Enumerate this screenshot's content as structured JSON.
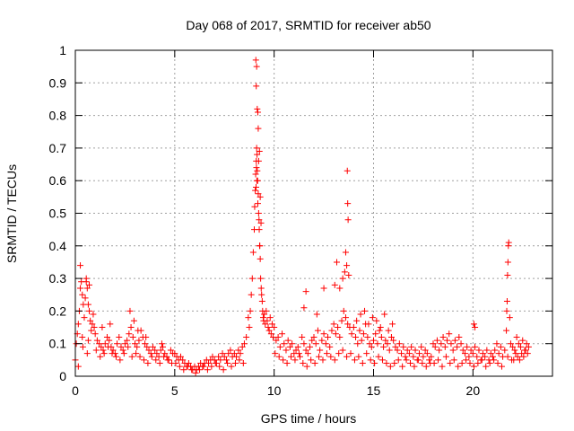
{
  "chart_data": {
    "type": "scatter",
    "title": "Day 068 of 2017, SRMTID for receiver ab50",
    "xlabel": "GPS time / hours",
    "ylabel": "SRMTID / TECUs",
    "xlim": [
      0,
      24
    ],
    "ylim": [
      0,
      1
    ],
    "grid": true,
    "marker": "+",
    "marker_color": "#ff0000",
    "xticks": [
      0,
      5,
      10,
      15,
      20
    ],
    "xtick_labels": [
      "0",
      "5",
      "10",
      "15",
      "20"
    ],
    "yticks": [
      0,
      0.1,
      0.2,
      0.3,
      0.4,
      0.5,
      0.6,
      0.7,
      0.8,
      0.9,
      1
    ],
    "ytick_labels": [
      "0",
      "0.1",
      "0.2",
      "0.3",
      "0.4",
      "0.5",
      "0.6",
      "0.7",
      "0.8",
      "0.9",
      "1"
    ],
    "series": [
      {
        "name": "SRMTID",
        "x": [
          0.0,
          0.05,
          0.1,
          0.15,
          0.2,
          0.25,
          0.3,
          0.35,
          0.4,
          0.45,
          0.5,
          0.55,
          0.6,
          0.65,
          0.7,
          0.75,
          0.8,
          0.85,
          0.9,
          0.95,
          0.25,
          0.35,
          0.55,
          0.7,
          0.38,
          0.65,
          0.15,
          0.6,
          1.0,
          1.1,
          1.2,
          1.3,
          1.4,
          1.5,
          1.6,
          1.7,
          1.8,
          1.9,
          2.0,
          2.1,
          2.2,
          2.3,
          2.4,
          2.5,
          2.6,
          2.7,
          2.8,
          2.9,
          3.0,
          3.1,
          3.2,
          3.3,
          3.4,
          3.5,
          3.6,
          3.7,
          3.8,
          3.9,
          4.0,
          4.1,
          4.2,
          4.3,
          4.4,
          4.5,
          4.6,
          4.7,
          4.8,
          4.9,
          1.05,
          1.25,
          1.45,
          1.65,
          1.85,
          2.05,
          2.25,
          2.45,
          2.65,
          2.85,
          3.05,
          3.25,
          3.45,
          3.65,
          3.85,
          4.05,
          4.25,
          4.45,
          4.65,
          4.85,
          2.75,
          2.95,
          3.15,
          1.35,
          1.75,
          3.55,
          4.35,
          5.0,
          5.1,
          5.2,
          5.3,
          5.4,
          5.5,
          5.6,
          5.7,
          5.8,
          5.9,
          6.0,
          6.1,
          6.2,
          6.3,
          6.4,
          6.5,
          6.6,
          6.7,
          6.8,
          6.9,
          7.0,
          7.1,
          7.2,
          7.3,
          7.4,
          7.5,
          7.6,
          7.7,
          7.8,
          7.9,
          8.0,
          8.1,
          8.2,
          8.3,
          8.4,
          8.5,
          5.05,
          5.25,
          5.45,
          5.65,
          5.85,
          6.05,
          6.25,
          6.45,
          6.65,
          6.85,
          7.05,
          7.25,
          7.45,
          7.65,
          7.85,
          8.05,
          8.25,
          8.45,
          8.6,
          8.7,
          8.75,
          8.8,
          8.85,
          8.9,
          8.95,
          9.0,
          9.02,
          9.05,
          9.07,
          9.1,
          9.12,
          9.15,
          9.17,
          9.2,
          9.22,
          9.25,
          9.27,
          9.3,
          9.32,
          9.35,
          9.37,
          9.4,
          9.42,
          9.45,
          9.47,
          9.5,
          9.55,
          9.6,
          9.65,
          9.7,
          9.75,
          9.8,
          9.85,
          9.9,
          9.95,
          9.08,
          9.12,
          9.1,
          9.15,
          9.18,
          9.2,
          9.14,
          9.22,
          9.26,
          9.3,
          9.34,
          9.28,
          9.24,
          9.18,
          9.09,
          9.11,
          9.13,
          10.0,
          10.1,
          10.2,
          10.3,
          10.4,
          10.5,
          10.6,
          10.7,
          10.8,
          10.9,
          11.0,
          11.1,
          11.2,
          11.3,
          11.4,
          11.5,
          11.6,
          11.7,
          11.8,
          11.9,
          12.0,
          12.1,
          12.2,
          12.3,
          12.4,
          12.5,
          12.6,
          12.7,
          12.8,
          12.9,
          13.0,
          13.1,
          13.2,
          13.3,
          13.4,
          13.5,
          13.6,
          13.7,
          13.8,
          13.9,
          10.05,
          10.25,
          10.45,
          10.65,
          10.85,
          11.05,
          11.25,
          11.45,
          11.65,
          11.85,
          12.05,
          12.25,
          12.45,
          12.65,
          12.85,
          13.05,
          13.25,
          13.45,
          13.65,
          13.85,
          11.5,
          11.6,
          12.15,
          12.5,
          13.05,
          13.15,
          13.3,
          13.45,
          13.55,
          13.6,
          13.65,
          13.68,
          13.7,
          13.72,
          13.75,
          14.0,
          14.1,
          14.2,
          14.3,
          14.4,
          14.5,
          14.6,
          14.7,
          14.8,
          14.9,
          15.0,
          15.1,
          15.2,
          15.3,
          15.4,
          15.5,
          15.6,
          15.7,
          15.8,
          15.9,
          16.0,
          16.1,
          16.2,
          16.3,
          16.4,
          16.5,
          16.6,
          16.7,
          16.8,
          16.9,
          17.0,
          17.1,
          17.2,
          17.3,
          17.4,
          17.5,
          17.6,
          17.7,
          17.8,
          17.9,
          14.05,
          14.25,
          14.45,
          14.65,
          14.85,
          15.05,
          15.25,
          15.45,
          15.65,
          15.85,
          16.05,
          16.25,
          16.45,
          16.65,
          16.85,
          17.05,
          17.25,
          17.45,
          17.65,
          17.85,
          14.15,
          14.35,
          14.55,
          14.75,
          14.95,
          15.15,
          15.35,
          15.55,
          15.75,
          15.95,
          18.0,
          18.1,
          18.2,
          18.3,
          18.4,
          18.5,
          18.6,
          18.7,
          18.8,
          18.9,
          19.0,
          19.1,
          19.2,
          19.3,
          19.4,
          19.5,
          19.6,
          19.7,
          19.8,
          19.9,
          20.0,
          20.1,
          20.2,
          20.3,
          20.4,
          20.5,
          20.6,
          20.7,
          20.8,
          20.9,
          21.0,
          21.1,
          21.2,
          21.3,
          21.4,
          21.5,
          21.6,
          18.05,
          18.25,
          18.45,
          18.65,
          18.85,
          19.05,
          19.25,
          19.45,
          19.65,
          19.85,
          20.05,
          20.25,
          20.45,
          20.65,
          20.85,
          21.05,
          21.25,
          21.45,
          21.7,
          21.72,
          21.74,
          21.76,
          21.78,
          21.8,
          21.85,
          21.9,
          22.0,
          22.1,
          22.2,
          22.3,
          22.4,
          22.5,
          22.6,
          22.7,
          22.8,
          21.75,
          21.95,
          22.15,
          22.35,
          22.55,
          22.75,
          22.05,
          22.25,
          22.45,
          22.65,
          20.05,
          20.1,
          21.68
        ],
        "y": [
          0.05,
          0.1,
          0.13,
          0.16,
          0.2,
          0.27,
          0.29,
          0.25,
          0.22,
          0.18,
          0.24,
          0.3,
          0.27,
          0.22,
          0.2,
          0.17,
          0.14,
          0.16,
          0.19,
          0.15,
          0.34,
          0.12,
          0.29,
          0.28,
          0.09,
          0.11,
          0.03,
          0.07,
          0.13,
          0.11,
          0.1,
          0.09,
          0.08,
          0.1,
          0.12,
          0.11,
          0.09,
          0.08,
          0.07,
          0.1,
          0.12,
          0.09,
          0.08,
          0.1,
          0.11,
          0.13,
          0.15,
          0.12,
          0.1,
          0.09,
          0.11,
          0.14,
          0.12,
          0.1,
          0.09,
          0.08,
          0.07,
          0.09,
          0.08,
          0.07,
          0.06,
          0.08,
          0.09,
          0.07,
          0.06,
          0.05,
          0.08,
          0.07,
          0.08,
          0.06,
          0.07,
          0.09,
          0.07,
          0.06,
          0.05,
          0.07,
          0.09,
          0.06,
          0.07,
          0.06,
          0.05,
          0.04,
          0.06,
          0.05,
          0.04,
          0.06,
          0.05,
          0.04,
          0.2,
          0.17,
          0.14,
          0.15,
          0.16,
          0.12,
          0.1,
          0.07,
          0.06,
          0.05,
          0.06,
          0.05,
          0.04,
          0.03,
          0.04,
          0.03,
          0.02,
          0.03,
          0.02,
          0.03,
          0.04,
          0.03,
          0.04,
          0.05,
          0.04,
          0.05,
          0.06,
          0.05,
          0.04,
          0.06,
          0.05,
          0.07,
          0.06,
          0.05,
          0.07,
          0.08,
          0.06,
          0.07,
          0.06,
          0.08,
          0.07,
          0.09,
          0.1,
          0.04,
          0.03,
          0.02,
          0.03,
          0.02,
          0.01,
          0.02,
          0.03,
          0.02,
          0.03,
          0.04,
          0.03,
          0.02,
          0.04,
          0.03,
          0.04,
          0.05,
          0.04,
          0.12,
          0.18,
          0.15,
          0.2,
          0.25,
          0.3,
          0.38,
          0.45,
          0.52,
          0.57,
          0.62,
          0.66,
          0.7,
          0.63,
          0.6,
          0.56,
          0.5,
          0.45,
          0.4,
          0.36,
          0.3,
          0.27,
          0.25,
          0.23,
          0.2,
          0.18,
          0.17,
          0.19,
          0.16,
          0.2,
          0.17,
          0.15,
          0.14,
          0.18,
          0.13,
          0.16,
          0.12,
          0.97,
          0.95,
          0.89,
          0.82,
          0.81,
          0.76,
          0.68,
          0.66,
          0.69,
          0.55,
          0.47,
          0.4,
          0.48,
          0.53,
          0.58,
          0.64,
          0.6,
          0.15,
          0.11,
          0.12,
          0.09,
          0.13,
          0.1,
          0.08,
          0.11,
          0.09,
          0.1,
          0.07,
          0.08,
          0.09,
          0.06,
          0.12,
          0.1,
          0.08,
          0.07,
          0.09,
          0.11,
          0.12,
          0.1,
          0.14,
          0.08,
          0.11,
          0.13,
          0.1,
          0.12,
          0.09,
          0.14,
          0.16,
          0.13,
          0.15,
          0.12,
          0.17,
          0.2,
          0.18,
          0.16,
          0.15,
          0.13,
          0.07,
          0.06,
          0.05,
          0.04,
          0.06,
          0.05,
          0.07,
          0.04,
          0.03,
          0.05,
          0.04,
          0.06,
          0.05,
          0.07,
          0.06,
          0.05,
          0.07,
          0.08,
          0.06,
          0.07,
          0.21,
          0.26,
          0.19,
          0.27,
          0.28,
          0.35,
          0.27,
          0.3,
          0.32,
          0.38,
          0.34,
          0.63,
          0.53,
          0.48,
          0.31,
          0.15,
          0.12,
          0.1,
          0.14,
          0.11,
          0.13,
          0.16,
          0.12,
          0.1,
          0.09,
          0.11,
          0.13,
          0.1,
          0.14,
          0.12,
          0.09,
          0.11,
          0.1,
          0.08,
          0.12,
          0.11,
          0.09,
          0.08,
          0.1,
          0.07,
          0.09,
          0.06,
          0.08,
          0.07,
          0.09,
          0.06,
          0.08,
          0.05,
          0.07,
          0.09,
          0.06,
          0.08,
          0.07,
          0.05,
          0.06,
          0.05,
          0.06,
          0.04,
          0.07,
          0.05,
          0.04,
          0.06,
          0.05,
          0.04,
          0.03,
          0.04,
          0.05,
          0.03,
          0.05,
          0.04,
          0.03,
          0.05,
          0.04,
          0.03,
          0.04,
          0.17,
          0.19,
          0.2,
          0.16,
          0.18,
          0.17,
          0.15,
          0.19,
          0.14,
          0.16,
          0.1,
          0.09,
          0.11,
          0.08,
          0.1,
          0.12,
          0.09,
          0.11,
          0.13,
          0.1,
          0.08,
          0.11,
          0.09,
          0.12,
          0.1,
          0.08,
          0.07,
          0.09,
          0.06,
          0.08,
          0.07,
          0.09,
          0.06,
          0.08,
          0.05,
          0.07,
          0.06,
          0.08,
          0.05,
          0.07,
          0.06,
          0.08,
          0.1,
          0.07,
          0.09,
          0.06,
          0.08,
          0.04,
          0.05,
          0.03,
          0.06,
          0.04,
          0.05,
          0.03,
          0.04,
          0.05,
          0.04,
          0.03,
          0.04,
          0.05,
          0.03,
          0.04,
          0.05,
          0.04,
          0.03,
          0.2,
          0.23,
          0.31,
          0.35,
          0.4,
          0.41,
          0.18,
          0.1,
          0.09,
          0.08,
          0.12,
          0.1,
          0.09,
          0.11,
          0.08,
          0.1,
          0.09,
          0.06,
          0.05,
          0.07,
          0.05,
          0.06,
          0.07,
          0.05,
          0.06,
          0.07,
          0.08,
          0.16,
          0.15,
          0.14
        ]
      }
    ]
  }
}
